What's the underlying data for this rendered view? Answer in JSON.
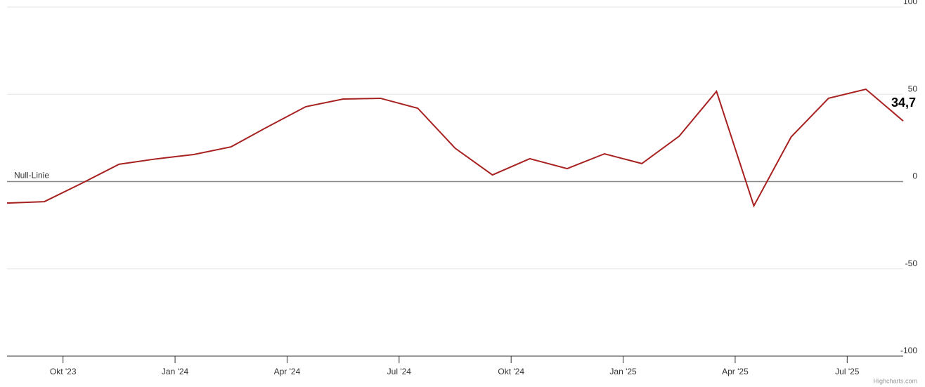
{
  "chart_data": {
    "type": "line",
    "x": [
      "2023-08",
      "2023-09",
      "2023-10",
      "2023-11",
      "2023-12",
      "2024-01",
      "2024-02",
      "2024-03",
      "2024-04",
      "2024-05",
      "2024-06",
      "2024-07",
      "2024-08",
      "2024-09",
      "2024-10",
      "2024-11",
      "2024-12",
      "2025-01",
      "2025-02",
      "2025-03",
      "2025-04",
      "2025-05",
      "2025-06",
      "2025-07",
      "2025-08"
    ],
    "series": [
      {
        "color": "#a82121",
        "values": [
          -12.3,
          -11.5,
          -1,
          9.9,
          13,
          15.5,
          19.9,
          31.6,
          42.9,
          47.3,
          47.7,
          42,
          19.1,
          3.8,
          13.1,
          7.4,
          15.9,
          10.3,
          26,
          51.7,
          -13.9,
          25.6,
          47.7,
          52.9,
          34.7
        ],
        "value_labels": [
          null,
          null,
          null,
          null,
          null,
          null,
          null,
          null,
          null,
          null,
          null,
          null,
          null,
          null,
          null,
          null,
          null,
          null,
          null,
          null,
          null,
          null,
          null,
          null,
          "34,7"
        ]
      }
    ],
    "xticks": [
      {
        "value": "2023-10",
        "label": "Okt '23"
      },
      {
        "value": "2024-01",
        "label": "Jan '24"
      },
      {
        "value": "2024-04",
        "label": "Apr '24"
      },
      {
        "value": "2024-07",
        "label": "Jul '24"
      },
      {
        "value": "2024-10",
        "label": "Okt '24"
      },
      {
        "value": "2025-01",
        "label": "Jan '25"
      },
      {
        "value": "2025-04",
        "label": "Apr '25"
      },
      {
        "value": "2025-07",
        "label": "Jul '25"
      }
    ],
    "ylim": [
      -100,
      100
    ],
    "yticks": [
      100,
      50,
      0,
      -50,
      -100
    ],
    "grid": true,
    "plot_lines": [
      {
        "value": 0,
        "label": "Null-Linie"
      }
    ],
    "credits": "Highcharts.com"
  }
}
